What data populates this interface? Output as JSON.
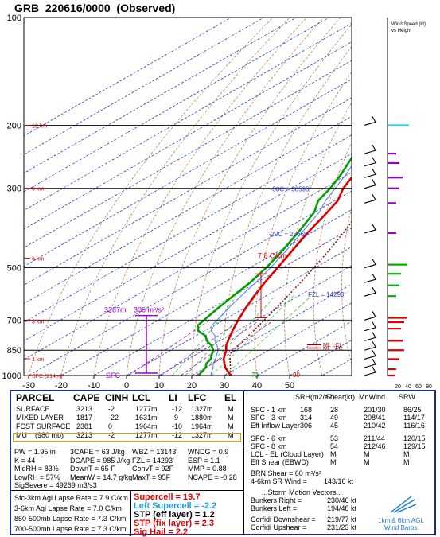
{
  "title": "GRB  220616/0000  (Observed)",
  "colors": {
    "temp": "#e00000",
    "dewpoint": "#00a000",
    "parcel": "#8b1a1a",
    "isotherm": "#2a3ad0",
    "adiabat": "#c0703a",
    "moist": "#33cc33",
    "wetbulb": "#4a78ff",
    "mixing": "#9900cc",
    "panel_border": "#1a2a7a",
    "mu_box": "#d9a000"
  },
  "chart_data": {
    "type": "line",
    "ylabel_levels": [
      "100",
      "200",
      "300",
      "500",
      "700",
      "850",
      "1000"
    ],
    "x_ticks": [
      "-30",
      "-20",
      "-10",
      "0",
      "10",
      "20",
      "30",
      "40",
      "50"
    ],
    "height_labels": [
      "12 km",
      "9 km",
      "6 km",
      "3 km",
      "1 km",
      "SFC (214m)"
    ],
    "isotherm_labels": [
      "-30C = 30598'",
      "-20C = 25665'",
      "FZL = 14293'"
    ],
    "annotations": {
      "lapse": "7.8 C/km",
      "lcl": "ML LCL",
      "lfc": "ML LFC",
      "t_sfc": "90",
      "td_sfc": "72",
      "ebwd_low": "3287m",
      "ebwd_top": "306 m²/s²",
      "sfc_tag": "SFC"
    },
    "temperature": [
      [
        1000,
        32
      ],
      [
        975,
        29
      ],
      [
        950,
        26
      ],
      [
        925,
        23.5
      ],
      [
        900,
        21
      ],
      [
        875,
        19
      ],
      [
        850,
        17
      ],
      [
        825,
        14.5
      ],
      [
        800,
        12.5
      ],
      [
        775,
        10.5
      ],
      [
        750,
        8.5
      ],
      [
        725,
        6.5
      ],
      [
        700,
        4.5
      ],
      [
        650,
        0.5
      ],
      [
        600,
        -3.5
      ],
      [
        550,
        -7.5
      ],
      [
        500,
        -11.5
      ],
      [
        450,
        -16
      ],
      [
        400,
        -21
      ],
      [
        350,
        -26
      ],
      [
        325,
        -29
      ],
      [
        300,
        -34
      ],
      [
        275,
        -38
      ],
      [
        250,
        -43
      ],
      [
        225,
        -48
      ],
      [
        200,
        -56
      ]
    ],
    "dewpoint": [
      [
        1000,
        22
      ],
      [
        975,
        21
      ],
      [
        950,
        20
      ],
      [
        925,
        18
      ],
      [
        900,
        17
      ],
      [
        875,
        15
      ],
      [
        850,
        13
      ],
      [
        825,
        10
      ],
      [
        800,
        6
      ],
      [
        775,
        3
      ],
      [
        750,
        -2
      ],
      [
        725,
        -5
      ],
      [
        700,
        -6
      ],
      [
        650,
        -8
      ],
      [
        600,
        -10
      ],
      [
        550,
        -12
      ],
      [
        500,
        -15
      ],
      [
        450,
        -19
      ],
      [
        400,
        -24
      ],
      [
        350,
        -30
      ],
      [
        325,
        -35
      ],
      [
        300,
        -38
      ],
      [
        275,
        -42
      ],
      [
        250,
        -47
      ],
      [
        225,
        -53
      ],
      [
        200,
        -62
      ]
    ],
    "wind_profile_label": "Wind Speed (kt) vs Height",
    "wind_axis": [
      "20",
      "40",
      "60",
      "80"
    ]
  },
  "parcel_table": {
    "headers": [
      "PARCEL",
      "CAPE",
      "CINH",
      "LCL",
      "LI",
      "LFC",
      "EL"
    ],
    "rows": [
      [
        "SURFACE",
        "3213",
        "-2",
        "1277m",
        "-12",
        "1327m",
        "M"
      ],
      [
        "MIXED LAYER",
        "1817",
        "-22",
        "1631m",
        "-9",
        "1880m",
        "M"
      ],
      [
        "FCST SURFACE",
        "2381",
        "0",
        "1964m",
        "-10",
        "1964m",
        "M"
      ],
      [
        "MU    (980 mb)",
        "3213",
        "-2",
        "1277m",
        "-12",
        "1327m",
        "M"
      ]
    ]
  },
  "thermo": [
    [
      "PW = 1.95 in",
      "3CAPE = 63 J/kg",
      "WBZ = 13143'",
      "WNDG = 0.9"
    ],
    [
      "K = 44",
      "DCAPE = 985 J/kg",
      "FZL = 14293'",
      "ESP = 1.1"
    ],
    [
      "MidRH = 83%",
      "DownT = 65 F",
      "ConvT = 92F",
      "MMP = 0.88"
    ],
    [
      "LowRH = 57%",
      "MeanW = 14.7 g/kg",
      "MaxT = 95F",
      "NCAPE = -0.28"
    ],
    [
      "SigSevere = 49269 m3/s3",
      "",
      "",
      ""
    ]
  ],
  "lapse_rates": [
    "Sfc-3km Agl Lapse Rate = 7.9 C/km",
    "3-6km Agl Lapse Rate = 7.0 C/km",
    "850-500mb Lapse Rate = 7.3 C/km",
    "700-500mb Lapse Rate = 7.3 C/km"
  ],
  "composites": [
    {
      "label": "Supercell = 19.7",
      "color": "#e00000"
    },
    {
      "label": "Left Supercell = -2.2",
      "color": "#1aa3e0"
    },
    {
      "label": "STP (eff layer) = 1.2",
      "color": "#000000"
    },
    {
      "label": "STP (fix layer) = 2.3",
      "color": "#e00000"
    },
    {
      "label": "Sig Hail = 2.2",
      "color": "#e00000"
    }
  ],
  "kinematic_headers": [
    "SRH(m2/s2)",
    "Shear(kt)",
    "MnWind",
    "SRW"
  ],
  "kinematic": [
    [
      "SFC - 1 km",
      "168",
      "28",
      "201/30",
      "86/25"
    ],
    [
      "SFC - 3 km",
      "314",
      "49",
      "208/41",
      "114/17"
    ],
    [
      "Eff Inflow Layer",
      "306",
      "45",
      "210/42",
      "116/16"
    ],
    [
      "SFC - 6 km",
      "",
      "53",
      "211/44",
      "120/15"
    ],
    [
      "SFC - 8 km",
      "",
      "54",
      "212/46",
      "129/15"
    ],
    [
      "LCL - EL (Cloud Layer)",
      "",
      "M",
      "M",
      "M"
    ],
    [
      "Eff Shear (EBWD)",
      "",
      "M",
      "M",
      "M"
    ]
  ],
  "brn": [
    "BRN Shear = 60 m²/s²",
    "4-6km SR Wind =",
    "143/16 kt"
  ],
  "storm_motion": {
    "title": "...Storm Motion Vectors...",
    "rows": [
      [
        "Bunkers Right =",
        "230/46 kt"
      ],
      [
        "Bunkers Left =",
        "194/48 kt"
      ],
      [
        "Corfidi Downshear =",
        "219/77 kt"
      ],
      [
        "Corfidi Upshear =",
        "231/23 kt"
      ]
    ]
  },
  "hodo_label": [
    "1km & 6km AGL",
    "Wind Barbs"
  ]
}
